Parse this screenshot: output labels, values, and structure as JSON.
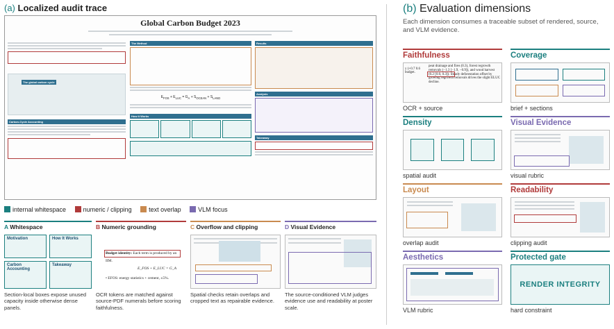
{
  "left": {
    "title_prefix": "(a)",
    "title": "Localized audit trace",
    "poster": {
      "title": "Global Carbon Budget 2023",
      "sections": [
        "The Method",
        "Results",
        "The global carbon cycle",
        "Carbon-Cycle Accounting",
        "How It Works",
        "Analysis",
        "Takeaway"
      ]
    },
    "legend": [
      {
        "label": "internal whitespace",
        "color": "#1b7f7f"
      },
      {
        "label": "numeric / clipping",
        "color": "#b03a3a"
      },
      {
        "label": "text overlap",
        "color": "#c98a4f"
      },
      {
        "label": "VLM focus",
        "color": "#7a6ab0"
      }
    ],
    "panels": [
      {
        "letter": "A",
        "title": "Whitespace",
        "color": "#1b7f7f",
        "chips": [
          "Motivation",
          "How It Works",
          "Carbon Accounting",
          "Takeaway"
        ],
        "caption": "Section-local boxes expose unused capacity inside otherwise dense panels."
      },
      {
        "letter": "B",
        "title": "Numeric grounding",
        "color": "#b03a3a",
        "snippet_label": "Budget identity:",
        "snippet_text": "Each term is produced by an",
        "snippet_text2": "IIM.",
        "formula": "E_FOS + E_LUC = G_A",
        "bullet": "• EFOS: energy statistics + cement, ±5%.",
        "caption": "OCR tokens are matched against source-PDF numerals before scoring faithfulness."
      },
      {
        "letter": "C",
        "title": "Overflow and clipping",
        "color": "#c98a4f",
        "caption": "Spatial checks retain overlaps and cropped text as repairable evidence."
      },
      {
        "letter": "D",
        "title": "Visual Evidence",
        "color": "#7a6ab0",
        "caption": "The source-conditioned VLM judges evidence use and readability at poster scale."
      }
    ]
  },
  "right": {
    "title_prefix": "(b)",
    "title": "Evaluation dimensions",
    "subtitle": "Each dimension consumes a traceable subset of rendered, source, and VLM evidence.",
    "dimensions": [
      {
        "name": "Faithfulness",
        "color": "#b03a3a",
        "caption": "OCR + source",
        "ocr_left": "y (+0.7 0.6 budget.",
        "ocr_right": "peat drainage and fires (0.3), forest regrowth removals (−1.3 [−1.9, −0.9]), and wood harvest (0.2 [0.0, 0.3]). Steady deforestation offset by growing regrowth removals drives the slight ELUC decline."
      },
      {
        "name": "Coverage",
        "color": "#1b7f7f",
        "caption": "brief + sections"
      },
      {
        "name": "Density",
        "color": "#1b7f7f",
        "caption": "spatial audit"
      },
      {
        "name": "Visual Evidence",
        "color": "#7a6ab0",
        "caption": "visual rubric"
      },
      {
        "name": "Layout",
        "color": "#c98a4f",
        "caption": "overlap audit"
      },
      {
        "name": "Readability",
        "color": "#b03a3a",
        "caption": "clipping audit"
      },
      {
        "name": "Aesthetics",
        "color": "#7a6ab0",
        "caption": "VLM rubric"
      },
      {
        "name": "Protected gate",
        "color": "#1b7f7f",
        "caption": "hard constraint",
        "badge": "RENDER INTEGRITY"
      }
    ]
  }
}
